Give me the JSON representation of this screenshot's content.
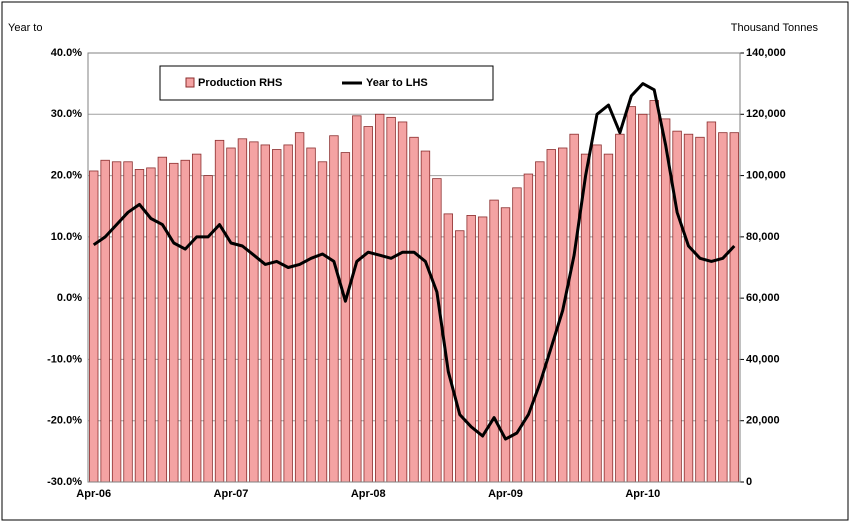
{
  "chart_data": {
    "type": "bar-line",
    "y_label": "Year to",
    "y2_label": "Thousand Tonnes",
    "categories": [
      "Apr-06",
      null,
      null,
      null,
      null,
      null,
      null,
      null,
      null,
      null,
      null,
      null,
      "Apr-07",
      null,
      null,
      null,
      null,
      null,
      null,
      null,
      null,
      null,
      null,
      null,
      "Apr-08",
      null,
      null,
      null,
      null,
      null,
      null,
      null,
      null,
      null,
      null,
      null,
      "Apr-09",
      null,
      null,
      null,
      null,
      null,
      null,
      null,
      null,
      null,
      null,
      null,
      "Apr-10",
      null,
      null,
      null,
      null,
      null,
      null,
      null,
      null
    ],
    "series": [
      {
        "name": "Production RHS",
        "type": "bar",
        "axis": "y2",
        "color": "#f4a3a3",
        "edge": "#8b2e2e",
        "values": [
          101500,
          105000,
          104500,
          104500,
          102000,
          102500,
          106000,
          104000,
          105000,
          107000,
          100000,
          111500,
          109000,
          112000,
          111000,
          110000,
          108500,
          110000,
          114000,
          109000,
          104500,
          113000,
          107500,
          119500,
          116000,
          120000,
          119000,
          117500,
          112500,
          108000,
          99000,
          87500,
          82000,
          87000,
          86500,
          92000,
          89500,
          96000,
          100500,
          104500,
          108500,
          109000,
          113500,
          107000,
          110000,
          107000,
          113500,
          122500,
          120000,
          124500,
          118500,
          114500,
          113500,
          112500,
          117500,
          114000,
          114000
        ]
      },
      {
        "name": "Year to LHS",
        "type": "line",
        "axis": "y",
        "color": "#000000",
        "values": [
          8.7,
          10,
          12,
          14,
          15.3,
          13,
          12,
          9,
          8,
          10,
          10,
          12,
          9,
          8.5,
          7,
          5.5,
          6,
          5,
          5.5,
          6.5,
          7.2,
          6,
          -0.5,
          6,
          7.5,
          7,
          6.5,
          7.5,
          7.5,
          6,
          1,
          -12,
          -19,
          -21,
          -22.5,
          -19.5,
          -23,
          -22,
          -19,
          -14,
          -8,
          -2,
          7,
          20,
          30,
          31.5,
          27,
          33,
          35,
          34,
          25,
          14,
          8.5,
          6.5,
          6,
          6.5,
          8.5
        ]
      }
    ],
    "ylim": [
      -30,
      40
    ],
    "yticks": [
      {
        "value": -30,
        "label": "-30.0%"
      },
      {
        "value": -20,
        "label": "-20.0%"
      },
      {
        "value": -10,
        "label": "-10.0%"
      },
      {
        "value": 0,
        "label": "0.0%"
      },
      {
        "value": 10,
        "label": "10.0%"
      },
      {
        "value": 20,
        "label": "20.0%"
      },
      {
        "value": 30,
        "label": "30.0%"
      },
      {
        "value": 40,
        "label": "40.0%"
      }
    ],
    "y2lim": [
      0,
      140000
    ],
    "y2ticks": [
      0,
      {
        "value": 20000,
        "label": "20,000"
      },
      {
        "value": 40000,
        "label": "40,000"
      },
      {
        "value": 60000,
        "label": "60,000"
      },
      {
        "value": 80000,
        "label": "80,000"
      },
      {
        "value": 100000,
        "label": "100,000"
      },
      {
        "value": 120000,
        "label": "120,000"
      },
      {
        "value": 140000,
        "label": "140,000"
      }
    ],
    "grid": true
  }
}
